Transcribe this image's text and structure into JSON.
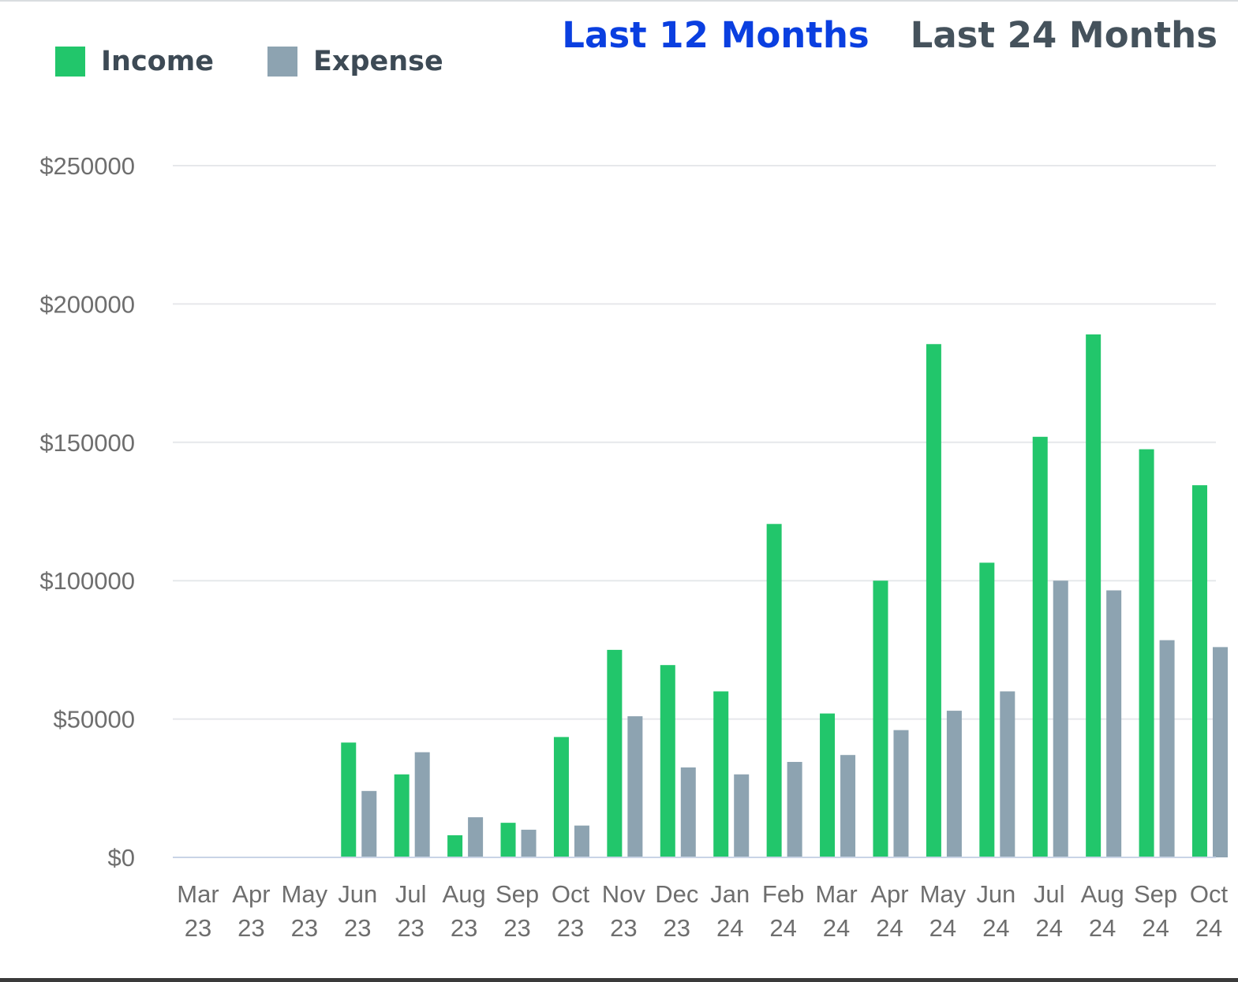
{
  "legend": {
    "income_label": "Income",
    "expense_label": "Expense"
  },
  "range_tabs": [
    {
      "label": "Last 12 Months",
      "active": true
    },
    {
      "label": "Last 24 Months",
      "active": false
    }
  ],
  "colors": {
    "income": "#22c66b",
    "expense": "#8da3b1",
    "active_tab": "#0a3fe0",
    "inactive_tab": "#45525c",
    "grid": "#e6e8eb",
    "axis": "#c9d4e6"
  },
  "chart_data": {
    "type": "bar",
    "title": "",
    "xlabel": "",
    "ylabel": "",
    "ylim": [
      0,
      250000
    ],
    "yticks": [
      0,
      50000,
      100000,
      150000,
      200000,
      250000
    ],
    "ytick_labels": [
      "$0",
      "$50000",
      "$100000",
      "$150000",
      "$200000",
      "$250000"
    ],
    "grid": true,
    "legend_position": "top-left",
    "categories": [
      [
        "Mar",
        "23"
      ],
      [
        "Apr",
        "23"
      ],
      [
        "May",
        "23"
      ],
      [
        "Jun",
        "23"
      ],
      [
        "Jul",
        "23"
      ],
      [
        "Aug",
        "23"
      ],
      [
        "Sep",
        "23"
      ],
      [
        "Oct",
        "23"
      ],
      [
        "Nov",
        "23"
      ],
      [
        "Dec",
        "23"
      ],
      [
        "Jan",
        "24"
      ],
      [
        "Feb",
        "24"
      ],
      [
        "Mar",
        "24"
      ],
      [
        "Apr",
        "24"
      ],
      [
        "May",
        "24"
      ],
      [
        "Jun",
        "24"
      ],
      [
        "Jul",
        "24"
      ],
      [
        "Aug",
        "24"
      ],
      [
        "Sep",
        "24"
      ],
      [
        "Oct",
        "24"
      ]
    ],
    "series": [
      {
        "name": "Income",
        "values": [
          0,
          0,
          0,
          41500,
          30000,
          8000,
          12500,
          43500,
          75000,
          69500,
          60000,
          120500,
          52000,
          100000,
          185500,
          106500,
          152000,
          189000,
          147500,
          134500
        ]
      },
      {
        "name": "Expense",
        "values": [
          0,
          0,
          0,
          24000,
          38000,
          14500,
          10000,
          11500,
          51000,
          32500,
          30000,
          34500,
          37000,
          46000,
          53000,
          60000,
          100000,
          96500,
          78500,
          76000
        ]
      }
    ]
  }
}
